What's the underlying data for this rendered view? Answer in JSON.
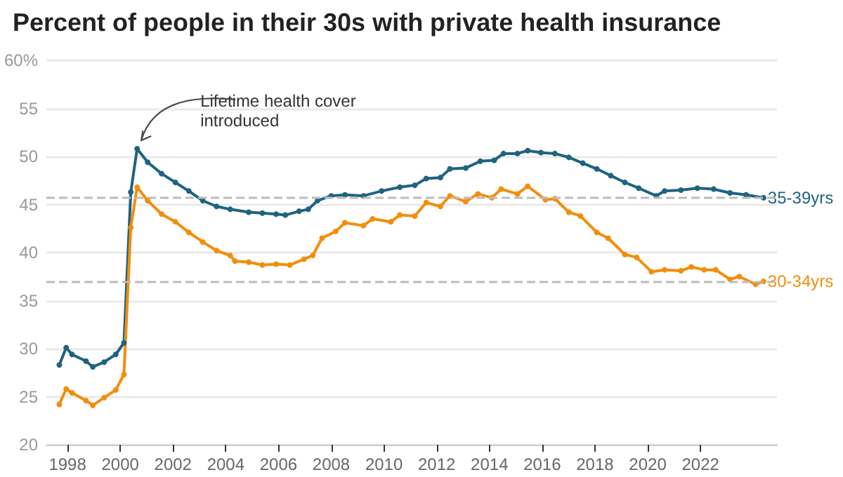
{
  "chart_data": {
    "type": "line",
    "title": "Percent of people in their 30s with private health insurance",
    "xlim": [
      1997.2,
      2024.9
    ],
    "xticks": [
      1998,
      2000,
      2002,
      2004,
      2006,
      2008,
      2010,
      2012,
      2014,
      2016,
      2018,
      2020,
      2022
    ],
    "ylim": [
      20,
      60
    ],
    "yticks": [
      20,
      25,
      30,
      35,
      40,
      45,
      50,
      55,
      {
        "value": 60,
        "label": "60%"
      }
    ],
    "grid": "y",
    "legend": false,
    "marker": "circle",
    "line_style": "solid",
    "ref_lines": [
      {
        "axis": "y",
        "value": 45.7,
        "color": "#bbbbbb",
        "line_style": "dashed"
      },
      {
        "axis": "y",
        "value": 37.0,
        "color": "#bbbbbb",
        "line_style": "dashed"
      }
    ],
    "annotations": [
      {
        "text": "Lifetime health cover introduced",
        "x": 2000.64,
        "y": 50.8
      }
    ],
    "series": [
      {
        "name": "35-39yrs",
        "color": "#1f6380",
        "x": [
          1997.69,
          1997.95,
          1998.17,
          1998.7,
          1998.96,
          1999.39,
          1999.83,
          2000.14,
          2000.4,
          2000.64,
          2001.04,
          2001.57,
          2002.09,
          2002.6,
          2003.13,
          2003.65,
          2004.17,
          2004.87,
          2005.39,
          2005.91,
          2006.26,
          2006.78,
          2007.13,
          2007.48,
          2008.0,
          2008.52,
          2009.22,
          2009.91,
          2010.6,
          2011.17,
          2011.6,
          2012.14,
          2012.5,
          2013.1,
          2013.65,
          2014.18,
          2014.53,
          2015.06,
          2015.45,
          2015.95,
          2016.48,
          2017.01,
          2017.54,
          2018.07,
          2018.6,
          2019.13,
          2019.66,
          2020.32,
          2020.64,
          2021.26,
          2021.88,
          2022.5,
          2023.12,
          2023.73,
          2024.39
        ],
        "values": [
          28.3,
          30.1,
          29.4,
          28.7,
          28.1,
          28.6,
          29.4,
          30.6,
          46.3,
          50.8,
          49.4,
          48.2,
          47.3,
          46.4,
          45.4,
          44.8,
          44.5,
          44.2,
          44.1,
          44.0,
          43.9,
          44.3,
          44.5,
          45.4,
          45.9,
          46.0,
          45.9,
          46.4,
          46.8,
          47.0,
          47.7,
          47.8,
          48.7,
          48.8,
          49.5,
          49.6,
          50.3,
          50.3,
          50.6,
          50.4,
          50.3,
          49.9,
          49.3,
          48.7,
          48.0,
          47.3,
          46.7,
          45.9,
          46.4,
          46.5,
          46.7,
          46.6,
          46.2,
          46.0,
          45.7
        ]
      },
      {
        "name": "30-34yrs",
        "color": "#f28e0c",
        "x": [
          1997.69,
          1997.95,
          1998.17,
          1998.7,
          1998.96,
          1999.39,
          1999.83,
          2000.14,
          2000.4,
          2000.64,
          2001.04,
          2001.57,
          2002.09,
          2002.6,
          2003.13,
          2003.65,
          2004.17,
          2004.35,
          2004.87,
          2005.39,
          2005.91,
          2006.43,
          2006.96,
          2007.3,
          2007.65,
          2008.17,
          2008.52,
          2009.22,
          2009.57,
          2010.26,
          2010.6,
          2011.17,
          2011.6,
          2012.14,
          2012.5,
          2013.1,
          2013.56,
          2014.09,
          2014.44,
          2015.06,
          2015.45,
          2016.12,
          2016.48,
          2017.01,
          2017.45,
          2018.07,
          2018.5,
          2019.13,
          2019.58,
          2020.14,
          2020.64,
          2021.26,
          2021.65,
          2022.14,
          2022.58,
          2023.12,
          2023.47,
          2024.09,
          2024.39
        ],
        "values": [
          24.2,
          25.8,
          25.4,
          24.6,
          24.1,
          24.9,
          25.7,
          27.3,
          42.6,
          46.8,
          45.4,
          44.0,
          43.2,
          42.1,
          41.1,
          40.2,
          39.7,
          39.1,
          39.0,
          38.7,
          38.8,
          38.7,
          39.3,
          39.7,
          41.5,
          42.2,
          43.1,
          42.8,
          43.5,
          43.2,
          43.9,
          43.8,
          45.2,
          44.8,
          45.9,
          45.3,
          46.1,
          45.7,
          46.6,
          46.1,
          46.9,
          45.5,
          45.6,
          44.2,
          43.8,
          42.1,
          41.5,
          39.8,
          39.5,
          38.0,
          38.2,
          38.1,
          38.5,
          38.2,
          38.2,
          37.2,
          37.5,
          36.7,
          37.0
        ]
      }
    ]
  }
}
